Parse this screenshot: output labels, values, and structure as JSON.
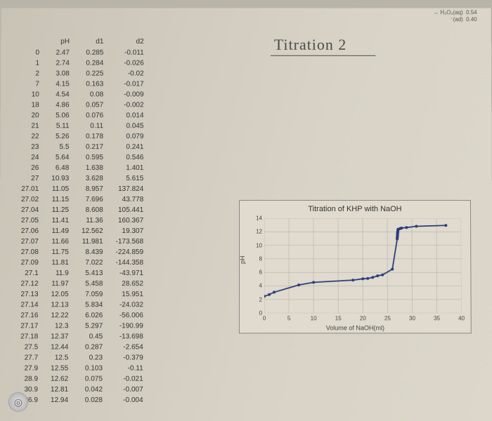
{
  "handwritten_title": "Titration 2",
  "top_notes": {
    "line1": "→ H₂O₂(aq)",
    "line2": "⁻(ad)",
    "val1": "0.54",
    "val2": "0.40"
  },
  "table": {
    "headers": [
      "",
      "pH",
      "d1",
      "d2"
    ],
    "rows": [
      [
        "0",
        "2.47",
        "0.285",
        "-0.011"
      ],
      [
        "1",
        "2.74",
        "0.284",
        "-0.026"
      ],
      [
        "2",
        "3.08",
        "0.225",
        "-0.02"
      ],
      [
        "7",
        "4.15",
        "0.163",
        "-0.017"
      ],
      [
        "10",
        "4.54",
        "0.08",
        "-0.009"
      ],
      [
        "18",
        "4.86",
        "0.057",
        "-0.002"
      ],
      [
        "20",
        "5.06",
        "0.076",
        "0.014"
      ],
      [
        "21",
        "5.11",
        "0.11",
        "0.045"
      ],
      [
        "22",
        "5.26",
        "0.178",
        "0.079"
      ],
      [
        "23",
        "5.5",
        "0.217",
        "0.241"
      ],
      [
        "24",
        "5.64",
        "0.595",
        "0.546"
      ],
      [
        "26",
        "6.48",
        "1.638",
        "1.401"
      ],
      [
        "27",
        "10.93",
        "3.628",
        "5.615"
      ],
      [
        "27.01",
        "11.05",
        "8.957",
        "137.824"
      ],
      [
        "27.02",
        "11.15",
        "7.696",
        "43.778"
      ],
      [
        "27.04",
        "11.25",
        "8.608",
        "105.441"
      ],
      [
        "27.05",
        "11.41",
        "11.36",
        "160.367"
      ],
      [
        "27.06",
        "11.49",
        "12.562",
        "19.307"
      ],
      [
        "27.07",
        "11.66",
        "11.981",
        "-173.568"
      ],
      [
        "27.08",
        "11.75",
        "8.439",
        "-224.859"
      ],
      [
        "27.09",
        "11.81",
        "7.022",
        "-144.358"
      ],
      [
        "27.1",
        "11.9",
        "5.413",
        "-43.971"
      ],
      [
        "27.12",
        "11.97",
        "5.458",
        "28.652"
      ],
      [
        "27.13",
        "12.05",
        "7.059",
        "15.951"
      ],
      [
        "27.14",
        "12.13",
        "5.834",
        "-24.032"
      ],
      [
        "27.16",
        "12.22",
        "6.026",
        "-56.006"
      ],
      [
        "27.17",
        "12.3",
        "5.297",
        "-190.99"
      ],
      [
        "27.18",
        "12.37",
        "0.45",
        "-13.698"
      ],
      [
        "27.5",
        "12.44",
        "0.287",
        "-2.654"
      ],
      [
        "27.7",
        "12.5",
        "0.23",
        "-0.379"
      ],
      [
        "27.9",
        "12.55",
        "0.103",
        "-0.11"
      ],
      [
        "28.9",
        "12.62",
        "0.075",
        "-0.021"
      ],
      [
        "30.9",
        "12.81",
        "0.042",
        "-0.007"
      ],
      [
        "36.9",
        "12.94",
        "0.028",
        "-0.004"
      ]
    ]
  },
  "chart": {
    "title": "Titration of KHP with NaOH",
    "ylabel": "pH",
    "xlabel": "Volume of NaOH(ml)",
    "xlim": [
      0,
      40
    ],
    "ylim": [
      0,
      14
    ],
    "xtick_step": 5,
    "ytick_step": 2,
    "line_color": "#2a3d7a",
    "marker_color": "#2a3d7a",
    "grid_color": "#aaaaaa",
    "background_color": "#e0dbce",
    "x": [
      0,
      1,
      2,
      7,
      10,
      18,
      20,
      21,
      22,
      23,
      24,
      26,
      27,
      27.01,
      27.02,
      27.04,
      27.05,
      27.06,
      27.07,
      27.08,
      27.09,
      27.1,
      27.12,
      27.13,
      27.14,
      27.16,
      27.17,
      27.18,
      27.5,
      27.7,
      27.9,
      28.9,
      30.9,
      36.9
    ],
    "y": [
      2.47,
      2.74,
      3.08,
      4.15,
      4.54,
      4.86,
      5.06,
      5.11,
      5.26,
      5.5,
      5.64,
      6.48,
      10.93,
      11.05,
      11.15,
      11.25,
      11.41,
      11.49,
      11.66,
      11.75,
      11.81,
      11.9,
      11.97,
      12.05,
      12.13,
      12.22,
      12.3,
      12.37,
      12.44,
      12.5,
      12.55,
      12.62,
      12.81,
      12.94
    ]
  }
}
